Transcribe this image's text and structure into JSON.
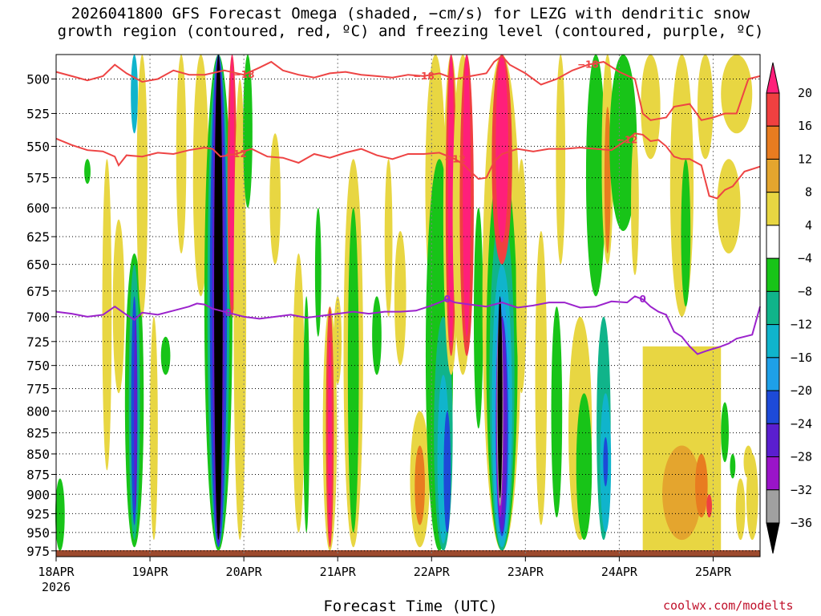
{
  "title_line1": "2026041800 GFS Forecast Omega (shaded, −cm/s) for LEZG with dendritic snow",
  "title_line2": "growth region (contoured, red, ºC) and freezing level (contoured, purple, ºC)",
  "credit": "coolwx.com/modelts",
  "chart_data": {
    "type": "heatmap",
    "title": "2026041800 GFS Forecast Omega (shaded, −cm/s) for LEZG with dendritic snow growth region (contoured, red, ºC) and freezing level (contoured, purple, ºC)",
    "xlabel": "Forecast Time (UTC)",
    "ylabel": "",
    "x_ticks": [
      "18APR",
      "19APR",
      "20APR",
      "21APR",
      "22APR",
      "23APR",
      "24APR",
      "25APR"
    ],
    "x_tick_sublabel": "2026",
    "xlim_hours": [
      0,
      180
    ],
    "y_ticks": [
      500,
      525,
      550,
      575,
      600,
      625,
      650,
      675,
      700,
      725,
      750,
      775,
      800,
      825,
      850,
      875,
      900,
      925,
      950,
      975
    ],
    "ylim_hPa": [
      983,
      483
    ],
    "y_scale": "log-pressure",
    "colorbar": {
      "labels": [
        "20",
        "16",
        "12",
        "8",
        "4",
        "−4",
        "−8",
        "−12",
        "−16",
        "−20",
        "−24",
        "−28",
        "−32",
        "−36"
      ],
      "colors": [
        "#ff1f7a",
        "#f04040",
        "#e87c20",
        "#e4a52e",
        "#e8d642",
        "#ffffff",
        "#18c418",
        "#10b48a",
        "#10b4cc",
        "#1ea0e8",
        "#1d4ad8",
        "#5a1ecf",
        "#9a14c8",
        "#a0a0a0",
        "#000000"
      ]
    },
    "contours": [
      {
        "label": "−18",
        "color": "#ee4444",
        "points": [
          [
            0,
            495
          ],
          [
            4,
            498
          ],
          [
            8,
            501
          ],
          [
            12,
            498
          ],
          [
            15,
            490
          ],
          [
            18,
            496
          ],
          [
            22,
            502
          ],
          [
            26,
            500
          ],
          [
            30,
            494
          ],
          [
            34,
            497
          ],
          [
            38,
            497
          ],
          [
            43,
            494
          ],
          [
            48,
            497
          ],
          [
            52,
            492
          ],
          [
            55,
            488
          ],
          [
            58,
            494
          ],
          [
            62,
            497
          ],
          [
            66,
            499
          ],
          [
            70,
            496
          ],
          [
            74,
            495
          ],
          [
            78,
            497
          ],
          [
            82,
            498
          ],
          [
            86,
            499
          ],
          [
            90,
            497
          ],
          [
            94,
            498
          ],
          [
            98,
            496
          ],
          [
            102,
            500
          ],
          [
            106,
            498
          ],
          [
            110,
            496
          ],
          [
            112,
            488
          ],
          [
            114,
            484
          ],
          [
            116,
            490
          ],
          [
            120,
            496
          ],
          [
            124,
            504
          ],
          [
            128,
            500
          ],
          [
            132,
            494
          ],
          [
            136,
            490
          ],
          [
            140,
            488
          ],
          [
            144,
            495
          ],
          [
            148,
            500
          ],
          [
            150,
            525
          ],
          [
            152,
            530
          ],
          [
            156,
            528
          ],
          [
            158,
            520
          ],
          [
            162,
            518
          ],
          [
            165,
            530
          ],
          [
            168,
            528
          ],
          [
            171,
            525
          ],
          [
            174,
            525
          ],
          [
            177,
            500
          ],
          [
            180,
            498
          ]
        ]
      },
      {
        "label": "−12",
        "color": "#ee4444",
        "points": [
          [
            0,
            544
          ],
          [
            4,
            549
          ],
          [
            8,
            553
          ],
          [
            12,
            554
          ],
          [
            15,
            558
          ],
          [
            16,
            565
          ],
          [
            18,
            557
          ],
          [
            22,
            558
          ],
          [
            26,
            555
          ],
          [
            30,
            556
          ],
          [
            34,
            553
          ],
          [
            38,
            551
          ],
          [
            40,
            552
          ],
          [
            42,
            558
          ],
          [
            46,
            556
          ],
          [
            50,
            552
          ],
          [
            54,
            558
          ],
          [
            58,
            559
          ],
          [
            62,
            563
          ],
          [
            66,
            556
          ],
          [
            70,
            559
          ],
          [
            74,
            555
          ],
          [
            78,
            552
          ],
          [
            82,
            557
          ],
          [
            86,
            560
          ],
          [
            90,
            556
          ],
          [
            94,
            556
          ],
          [
            98,
            555
          ],
          [
            102,
            560
          ],
          [
            104,
            564
          ],
          [
            106,
            570
          ],
          [
            108,
            576
          ],
          [
            110,
            575
          ],
          [
            112,
            562
          ],
          [
            114,
            556
          ],
          [
            118,
            552
          ],
          [
            122,
            554
          ],
          [
            126,
            552
          ],
          [
            130,
            552
          ],
          [
            134,
            551
          ],
          [
            138,
            552
          ],
          [
            142,
            553
          ],
          [
            146,
            545
          ],
          [
            148,
            540
          ],
          [
            150,
            541
          ],
          [
            152,
            546
          ],
          [
            154,
            545
          ],
          [
            156,
            550
          ],
          [
            158,
            558
          ],
          [
            160,
            560
          ],
          [
            162,
            560
          ],
          [
            165,
            565
          ],
          [
            167,
            590
          ],
          [
            169,
            592
          ],
          [
            171,
            585
          ],
          [
            173,
            582
          ],
          [
            176,
            570
          ],
          [
            180,
            566
          ]
        ]
      },
      {
        "label": "0",
        "color": "#9b22cc",
        "points": [
          [
            0,
            695
          ],
          [
            4,
            697
          ],
          [
            8,
            700
          ],
          [
            12,
            698
          ],
          [
            15,
            690
          ],
          [
            18,
            698
          ],
          [
            20,
            703
          ],
          [
            22,
            696
          ],
          [
            26,
            698
          ],
          [
            30,
            694
          ],
          [
            34,
            690
          ],
          [
            36,
            687
          ],
          [
            38,
            688
          ],
          [
            40,
            692
          ],
          [
            44,
            696
          ],
          [
            48,
            700
          ],
          [
            52,
            702
          ],
          [
            56,
            700
          ],
          [
            60,
            698
          ],
          [
            64,
            701
          ],
          [
            68,
            699
          ],
          [
            72,
            697
          ],
          [
            76,
            695
          ],
          [
            80,
            697
          ],
          [
            84,
            695
          ],
          [
            88,
            695
          ],
          [
            92,
            694
          ],
          [
            96,
            689
          ],
          [
            100,
            683
          ],
          [
            102,
            686
          ],
          [
            106,
            688
          ],
          [
            110,
            690
          ],
          [
            114,
            686
          ],
          [
            118,
            691
          ],
          [
            122,
            689
          ],
          [
            126,
            686
          ],
          [
            130,
            686
          ],
          [
            134,
            691
          ],
          [
            138,
            690
          ],
          [
            142,
            685
          ],
          [
            146,
            686
          ],
          [
            148,
            680
          ],
          [
            150,
            683
          ],
          [
            152,
            690
          ],
          [
            154,
            695
          ],
          [
            156,
            698
          ],
          [
            158,
            715
          ],
          [
            160,
            720
          ],
          [
            162,
            730
          ],
          [
            164,
            738
          ],
          [
            166,
            735
          ],
          [
            170,
            730
          ],
          [
            172,
            727
          ],
          [
            174,
            722
          ],
          [
            178,
            718
          ],
          [
            180,
            690
          ]
        ]
      }
    ],
    "shaded_features": [
      {
        "label": "strong ascent (−36 to −32)",
        "hours": [
          40,
          43
        ],
        "p_top": 483,
        "p_bottom": 960
      },
      {
        "label": "strong ascent (−36 to −32)",
        "hours": [
          112,
          115
        ],
        "p_top": 670,
        "p_bottom": 910
      },
      {
        "label": "strong descent (+16 to +20)",
        "hours": [
          104,
          106
        ],
        "p_top": 483,
        "p_bottom": 700
      },
      {
        "label": "strong descent (+16 to +20)",
        "hours": [
          112,
          115
        ],
        "p_top": 483,
        "p_bottom": 640
      },
      {
        "label": "descent (+8 to +12)",
        "hours": [
          150,
          180
        ],
        "p_top": 720,
        "p_bottom": 975
      }
    ]
  }
}
